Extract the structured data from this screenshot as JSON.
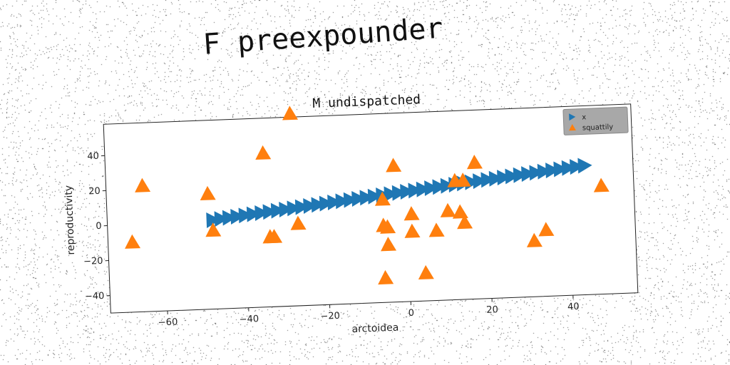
{
  "suptitle": "F preexpounder",
  "chart_data": {
    "type": "scatter",
    "title": "M undispatched",
    "xlabel": "arctoidea",
    "ylabel": "reproductivity",
    "xlim": [
      -74,
      56
    ],
    "ylim": [
      -50,
      58
    ],
    "xticks": [
      -60,
      -40,
      -20,
      0,
      20,
      40
    ],
    "yticks": [
      -40,
      -20,
      0,
      20,
      40
    ],
    "grid": false,
    "legend_position": "top-right",
    "series": [
      {
        "name": "x",
        "marker": "triangle-right",
        "color": "#1f77b4",
        "x": [
          -48,
          -46,
          -44,
          -42,
          -40,
          -38,
          -36,
          -34,
          -32,
          -30,
          -28,
          -26,
          -24,
          -22,
          -20,
          -18,
          -16,
          -14,
          -12,
          -10,
          -8,
          -6,
          -4,
          -2,
          0,
          2,
          4,
          6,
          8,
          10,
          12,
          14,
          16,
          18,
          20,
          22,
          24,
          26,
          28,
          30,
          32,
          34,
          36,
          38,
          40,
          42,
          44
        ],
        "y": [
          0.9,
          1.4,
          1.9,
          2.4,
          2.9,
          3.4,
          3.9,
          4.4,
          4.9,
          5.4,
          5.9,
          6.4,
          6.9,
          7.4,
          7.9,
          8.4,
          8.9,
          9.4,
          9.9,
          10.4,
          10.9,
          11.4,
          11.9,
          12.4,
          12.9,
          13.4,
          13.9,
          14.4,
          14.9,
          15.4,
          15.9,
          16.4,
          16.9,
          17.4,
          17.9,
          18.4,
          18.9,
          19.4,
          19.9,
          20.4,
          20.9,
          21.4,
          21.9,
          22.4,
          22.9,
          23.4,
          23.9
        ]
      },
      {
        "name": "squattily",
        "marker": "triangle-up",
        "color": "#ff7f0e",
        "x": [
          -68,
          -65,
          -49,
          -48,
          -35,
          -34,
          -33,
          -27,
          -28,
          -6,
          -6,
          -5,
          -5,
          -6,
          -3,
          1,
          1,
          4,
          7,
          10,
          12,
          14,
          13,
          14,
          17,
          31,
          34,
          48
        ],
        "y": [
          -10,
          22,
          16,
          -5,
          38,
          -10,
          -10,
          -3,
          60,
          9,
          -6,
          -7,
          -17,
          -36,
          28,
          0,
          -10,
          -34,
          -10,
          1,
          18,
          18,
          0,
          -6,
          28,
          -18,
          -12,
          12
        ]
      }
    ]
  }
}
